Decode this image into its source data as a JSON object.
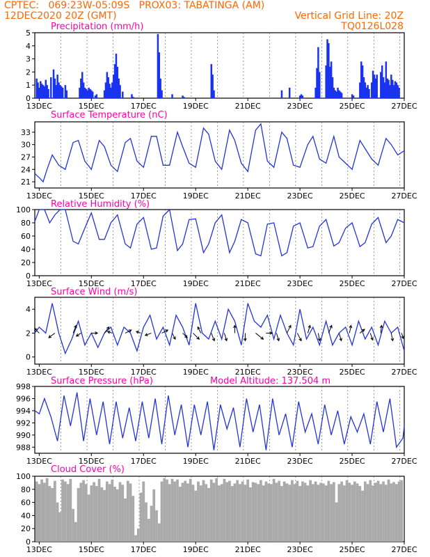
{
  "header": {
    "line1_left": "CPTEC:   069:23W-05:09S   PROX03: TABATINGA (AM)",
    "line2_left": "12DEC2020 20Z (GMT)",
    "line2_right": "Vertical Grid Line: 20Z",
    "line3_right": "TQ0126L028"
  },
  "colors": {
    "line": "#2233dd",
    "bar": "#1a33ee",
    "cloud": "#aaaaaa",
    "title": "#ff00aa",
    "header": "#ff6600",
    "arrow": "#000000"
  },
  "chart_data": [
    {
      "type": "bar",
      "title": "Precipitation (mm/h)",
      "x_ticks": [
        "13DEC",
        "15DEC",
        "17DEC",
        "19DEC",
        "21DEC",
        "23DEC",
        "25DEC",
        "27DEC"
      ],
      "y_ticks": [
        0,
        1,
        2,
        3,
        4,
        5
      ],
      "ylim": [
        0,
        5
      ],
      "x_range_days": [
        12.83,
        27.0
      ],
      "x": [
        12.9,
        12.95,
        13.0,
        13.05,
        13.1,
        13.15,
        13.2,
        13.25,
        13.3,
        13.35,
        13.45,
        13.55,
        13.6,
        13.65,
        13.7,
        13.75,
        13.8,
        13.85,
        13.9,
        14.0,
        14.05,
        14.55,
        14.6,
        14.65,
        14.7,
        14.75,
        14.8,
        14.85,
        14.9,
        14.95,
        15.0,
        15.05,
        15.15,
        15.2,
        15.5,
        15.55,
        15.6,
        15.65,
        15.7,
        15.75,
        15.8,
        15.85,
        15.9,
        15.95,
        16.0,
        16.05,
        16.1,
        16.2,
        16.55,
        16.6,
        17.55,
        17.6,
        17.65,
        17.7,
        18.1,
        18.5,
        18.55,
        19.6,
        19.65,
        19.7,
        22.3,
        22.6,
        23.0,
        23.05,
        23.1,
        23.6,
        23.65,
        23.7,
        23.75,
        24.0,
        24.05,
        24.1,
        24.15,
        24.2,
        24.25,
        24.3,
        24.35,
        24.4,
        24.45,
        24.5,
        24.55,
        24.6,
        25.0,
        25.05,
        25.3,
        25.35,
        25.4,
        25.45,
        25.5,
        25.55,
        25.6,
        25.65,
        25.75,
        25.8,
        25.85,
        25.9,
        25.95,
        26.1,
        26.15,
        26.2,
        26.25,
        26.3,
        26.35,
        26.4,
        26.45,
        26.5,
        26.55,
        26.6,
        26.65,
        26.7,
        26.75,
        26.8
      ],
      "values": [
        1.5,
        1.2,
        0.8,
        1.3,
        1.1,
        1.0,
        0.9,
        1.4,
        1.0,
        0.7,
        1.6,
        2.2,
        1.5,
        1.0,
        1.8,
        1.2,
        1.0,
        0.9,
        0.8,
        1.0,
        0.6,
        0.8,
        1.5,
        2.0,
        1.2,
        0.8,
        0.7,
        0.6,
        0.8,
        0.7,
        0.6,
        0.5,
        0.2,
        0.3,
        0.6,
        1.2,
        2.0,
        1.6,
        1.1,
        0.8,
        1.2,
        1.8,
        2.6,
        3.4,
        2.4,
        1.5,
        1.0,
        0.5,
        0.3,
        0.1,
        4.9,
        3.5,
        1.5,
        0.6,
        0.3,
        0.2,
        0.1,
        2.6,
        1.8,
        0.6,
        0.6,
        0.8,
        0.2,
        0.3,
        0.2,
        0.8,
        2.3,
        3.9,
        2.0,
        2.5,
        4.5,
        4.2,
        2.4,
        2.8,
        1.6,
        0.8,
        0.6,
        0.5,
        0.8,
        0.6,
        0.5,
        0.4,
        0.3,
        0.2,
        1.2,
        2.8,
        2.5,
        1.6,
        1.2,
        0.8,
        1.0,
        0.7,
        1.2,
        2.1,
        1.8,
        1.5,
        1.8,
        2.0,
        2.5,
        1.6,
        1.2,
        2.8,
        1.5,
        1.4,
        1.0,
        1.8,
        1.4,
        1.0,
        1.3,
        1.2,
        1.0,
        0.8
      ]
    },
    {
      "type": "line",
      "title": "Surface Temperature (nC)",
      "x_ticks": [
        "13DEC",
        "15DEC",
        "17DEC",
        "19DEC",
        "21DEC",
        "23DEC",
        "25DEC",
        "27DEC"
      ],
      "y_ticks": [
        21,
        24,
        27,
        30,
        33
      ],
      "ylim": [
        19.5,
        35.5
      ],
      "x": [
        12.83,
        13.0,
        13.15,
        13.3,
        13.5,
        13.75,
        14.0,
        14.3,
        14.5,
        14.75,
        15.0,
        15.3,
        15.5,
        15.75,
        16.0,
        16.3,
        16.5,
        16.75,
        17.0,
        17.3,
        17.5,
        17.75,
        18.0,
        18.3,
        18.5,
        18.75,
        19.0,
        19.3,
        19.5,
        19.75,
        20.0,
        20.3,
        20.5,
        20.75,
        21.0,
        21.3,
        21.5,
        21.75,
        22.0,
        22.3,
        22.5,
        22.75,
        23.0,
        23.3,
        23.5,
        23.75,
        24.0,
        24.3,
        24.5,
        24.75,
        25.0,
        25.3,
        25.5,
        25.75,
        26.0,
        26.3,
        26.5,
        26.75,
        27.0
      ],
      "values": [
        23.0,
        22.0,
        21.0,
        24.0,
        27.5,
        25.0,
        24.0,
        30.5,
        31.0,
        26.0,
        24.0,
        31.0,
        29.5,
        25.0,
        23.5,
        30.5,
        31.5,
        26.0,
        24.5,
        32.0,
        32.0,
        25.0,
        25.0,
        33.0,
        29.5,
        25.5,
        24.5,
        34.0,
        32.5,
        26.0,
        24.0,
        33.5,
        31.0,
        25.5,
        23.5,
        33.5,
        35.0,
        26.0,
        24.5,
        33.0,
        31.5,
        25.0,
        24.5,
        30.0,
        32.0,
        26.5,
        25.5,
        32.0,
        27.0,
        25.5,
        24.0,
        31.0,
        29.0,
        26.5,
        25.0,
        31.5,
        30.0,
        27.5,
        28.5
      ]
    },
    {
      "type": "line",
      "title": "Relative Humidity (%)",
      "x_ticks": [
        "13DEC",
        "15DEC",
        "17DEC",
        "19DEC",
        "21DEC",
        "23DEC",
        "25DEC",
        "27DEC"
      ],
      "y_ticks": [
        0,
        20,
        40,
        60,
        80,
        100
      ],
      "ylim": [
        0,
        100
      ],
      "x": [
        12.83,
        13.0,
        13.2,
        13.4,
        13.6,
        13.8,
        14.0,
        14.3,
        14.5,
        14.75,
        15.0,
        15.3,
        15.5,
        15.75,
        16.0,
        16.3,
        16.5,
        16.75,
        17.0,
        17.3,
        17.5,
        17.75,
        18.0,
        18.3,
        18.5,
        18.75,
        19.0,
        19.3,
        19.5,
        19.75,
        20.0,
        20.3,
        20.5,
        20.75,
        21.0,
        21.3,
        21.5,
        21.75,
        22.0,
        22.3,
        22.5,
        22.75,
        23.0,
        23.3,
        23.5,
        23.75,
        24.0,
        24.3,
        24.5,
        24.75,
        25.0,
        25.3,
        25.5,
        25.75,
        26.0,
        26.3,
        26.5,
        26.75,
        27.0
      ],
      "values": [
        82,
        100,
        100,
        80,
        92,
        100,
        100,
        52,
        48,
        72,
        95,
        55,
        55,
        80,
        92,
        48,
        42,
        78,
        88,
        40,
        42,
        90,
        100,
        38,
        48,
        85,
        86,
        35,
        48,
        80,
        92,
        35,
        52,
        85,
        80,
        33,
        30,
        78,
        80,
        30,
        35,
        75,
        80,
        42,
        44,
        75,
        85,
        45,
        50,
        72,
        80,
        44,
        50,
        78,
        88,
        50,
        60,
        85,
        80
      ]
    },
    {
      "type": "line",
      "title": "Surface Wind (m/s)",
      "x_ticks": [
        "13DEC",
        "15DEC",
        "17DEC",
        "19DEC",
        "21DEC",
        "23DEC",
        "25DEC",
        "27DEC"
      ],
      "y_ticks": [
        0,
        2,
        4
      ],
      "ylim": [
        -0.6,
        5.0
      ],
      "x": [
        12.83,
        13.0,
        13.25,
        13.5,
        13.75,
        14.0,
        14.25,
        14.5,
        14.75,
        15.0,
        15.25,
        15.5,
        15.75,
        16.0,
        16.25,
        16.5,
        16.75,
        17.0,
        17.25,
        17.5,
        17.75,
        18.0,
        18.25,
        18.5,
        18.75,
        19.0,
        19.25,
        19.5,
        19.75,
        20.0,
        20.25,
        20.5,
        20.75,
        21.0,
        21.25,
        21.5,
        21.75,
        22.0,
        22.25,
        22.5,
        22.75,
        23.0,
        23.25,
        23.5,
        23.75,
        24.0,
        24.25,
        24.5,
        24.75,
        25.0,
        25.25,
        25.5,
        25.75,
        26.0,
        26.25,
        26.5,
        26.75,
        27.0
      ],
      "values": [
        2.0,
        2.5,
        2.0,
        4.5,
        2.0,
        0.3,
        1.5,
        3.0,
        1.0,
        2.0,
        0.8,
        2.0,
        2.5,
        1.0,
        2.5,
        2.0,
        0.5,
        2.5,
        3.5,
        1.5,
        2.5,
        1.0,
        3.5,
        2.5,
        1.0,
        4.5,
        2.0,
        1.5,
        3.0,
        1.5,
        4.0,
        3.0,
        1.0,
        4.5,
        3.0,
        2.5,
        3.5,
        1.5,
        3.5,
        2.0,
        1.0,
        4.0,
        1.5,
        2.5,
        1.0,
        3.0,
        1.0,
        2.0,
        2.5,
        1.0,
        3.0,
        1.5,
        2.5,
        1.0,
        3.0,
        2.0,
        2.5,
        0.5
      ],
      "arrows": [
        {
          "x": 13.0,
          "u": -0.6,
          "v": 0.6
        },
        {
          "x": 13.6,
          "u": -0.8,
          "v": -0.6
        },
        {
          "x": 14.3,
          "u": 0.4,
          "v": 1.0
        },
        {
          "x": 14.6,
          "u": -0.6,
          "v": -0.4
        },
        {
          "x": 15.0,
          "u": 0.8,
          "v": 0.0
        },
        {
          "x": 15.5,
          "u": 0.6,
          "v": 0.8
        },
        {
          "x": 15.8,
          "u": -0.6,
          "v": 0.2
        },
        {
          "x": 16.3,
          "u": 0.8,
          "v": 0.4
        },
        {
          "x": 16.9,
          "u": -0.6,
          "v": 0.2
        },
        {
          "x": 17.3,
          "u": -0.8,
          "v": -0.3
        },
        {
          "x": 17.7,
          "u": 0.8,
          "v": 0.4
        },
        {
          "x": 18.1,
          "u": 0.4,
          "v": -0.8
        },
        {
          "x": 18.5,
          "u": 0.6,
          "v": -0.6
        },
        {
          "x": 18.9,
          "u": 0.8,
          "v": -0.8
        },
        {
          "x": 19.2,
          "u": -0.4,
          "v": 0.8
        },
        {
          "x": 19.6,
          "u": 0.4,
          "v": -1.0
        },
        {
          "x": 20.1,
          "u": 0.3,
          "v": -1.0
        },
        {
          "x": 20.5,
          "u": 0.0,
          "v": 1.0
        },
        {
          "x": 20.9,
          "u": 0.0,
          "v": -1.0
        },
        {
          "x": 21.3,
          "u": 1.0,
          "v": -0.8
        },
        {
          "x": 21.7,
          "u": 0.8,
          "v": 0.0
        },
        {
          "x": 22.1,
          "u": 0.3,
          "v": -1.0
        },
        {
          "x": 22.5,
          "u": 0.5,
          "v": 1.0
        },
        {
          "x": 22.9,
          "u": 0.5,
          "v": -1.0
        },
        {
          "x": 23.3,
          "u": 0.3,
          "v": 1.0
        },
        {
          "x": 23.7,
          "u": 0.2,
          "v": -1.0
        },
        {
          "x": 24.1,
          "u": 0.4,
          "v": 1.0
        },
        {
          "x": 24.5,
          "u": 0.3,
          "v": -1.0
        },
        {
          "x": 24.9,
          "u": 0.2,
          "v": 1.0
        },
        {
          "x": 25.3,
          "u": 0.6,
          "v": 0.5
        },
        {
          "x": 25.7,
          "u": 0.3,
          "v": -0.9
        },
        {
          "x": 26.1,
          "u": 0.1,
          "v": 1.0
        },
        {
          "x": 26.5,
          "u": 0.2,
          "v": -1.0
        },
        {
          "x": 26.9,
          "u": 0.2,
          "v": -0.7
        }
      ]
    },
    {
      "type": "line",
      "title": "Surface Pressure (hPa)",
      "annotation": "Model Altitude: 137.504  m",
      "x_ticks": [
        "13DEC",
        "15DEC",
        "17DEC",
        "19DEC",
        "21DEC",
        "23DEC",
        "25DEC",
        "27DEC"
      ],
      "y_ticks": [
        988,
        990,
        992,
        994,
        996,
        998
      ],
      "ylim": [
        987.0,
        998.0
      ],
      "x": [
        12.83,
        13.0,
        13.2,
        13.45,
        13.7,
        13.95,
        14.2,
        14.45,
        14.7,
        14.95,
        15.2,
        15.45,
        15.7,
        15.95,
        16.2,
        16.45,
        16.7,
        16.95,
        17.2,
        17.45,
        17.7,
        17.95,
        18.2,
        18.45,
        18.7,
        18.95,
        19.2,
        19.45,
        19.7,
        19.95,
        20.2,
        20.45,
        20.7,
        20.95,
        21.2,
        21.45,
        21.7,
        21.95,
        22.2,
        22.45,
        22.7,
        22.95,
        23.2,
        23.45,
        23.7,
        23.95,
        24.2,
        24.45,
        24.7,
        24.95,
        25.2,
        25.45,
        25.7,
        25.95,
        26.2,
        26.45,
        26.7,
        26.95,
        27.0
      ],
      "values": [
        994.0,
        993.5,
        996.0,
        993.0,
        989.0,
        996.5,
        991.5,
        997.0,
        989.0,
        996.0,
        990.0,
        995.5,
        988.5,
        995.5,
        989.5,
        994.5,
        989.0,
        995.5,
        989.5,
        996.0,
        988.5,
        996.5,
        990.0,
        995.0,
        988.0,
        995.0,
        990.0,
        995.5,
        987.5,
        995.0,
        991.0,
        994.5,
        988.0,
        996.0,
        990.5,
        995.0,
        987.5,
        996.0,
        990.0,
        993.5,
        988.0,
        995.5,
        990.5,
        993.5,
        988.5,
        995.0,
        990.0,
        994.0,
        988.5,
        993.0,
        990.5,
        993.5,
        988.5,
        995.5,
        990.5,
        996.0,
        988.0,
        989.5,
        991.5
      ]
    },
    {
      "type": "bar",
      "title": "Cloud Cover (%)",
      "x_ticks": [
        "13DEC",
        "15DEC",
        "17DEC",
        "19DEC",
        "21DEC",
        "23DEC",
        "25DEC",
        "27DEC"
      ],
      "y_ticks": [
        0,
        20,
        40,
        60,
        80,
        100
      ],
      "ylim": [
        0,
        100
      ],
      "x_range_days": [
        12.83,
        27.0
      ],
      "x": [
        12.9,
        13.0,
        13.1,
        13.2,
        13.3,
        13.4,
        13.5,
        13.6,
        13.7,
        13.8,
        13.9,
        14.0,
        14.1,
        14.2,
        14.3,
        14.4,
        14.5,
        14.6,
        14.7,
        14.8,
        14.9,
        15.0,
        15.1,
        15.2,
        15.3,
        15.4,
        15.5,
        15.6,
        15.7,
        15.8,
        15.9,
        16.0,
        16.1,
        16.2,
        16.3,
        16.4,
        16.5,
        16.6,
        16.7,
        16.8,
        16.9,
        17.0,
        17.1,
        17.2,
        17.3,
        17.4,
        17.5,
        17.6,
        17.7,
        17.8,
        17.9,
        18.0,
        18.1,
        18.2,
        18.3,
        18.4,
        18.5,
        18.6,
        18.7,
        18.8,
        18.9,
        19.0,
        19.1,
        19.2,
        19.3,
        19.4,
        19.5,
        19.6,
        19.7,
        19.8,
        19.9,
        20.0,
        20.1,
        20.2,
        20.3,
        20.4,
        20.5,
        20.6,
        20.7,
        20.8,
        20.9,
        21.0,
        21.1,
        21.2,
        21.3,
        21.4,
        21.5,
        21.6,
        21.7,
        21.8,
        21.9,
        22.0,
        22.1,
        22.2,
        22.3,
        22.4,
        22.5,
        22.6,
        22.7,
        22.8,
        22.9,
        23.0,
        23.1,
        23.2,
        23.3,
        23.4,
        23.5,
        23.6,
        23.7,
        23.8,
        23.9,
        24.0,
        24.1,
        24.2,
        24.3,
        24.4,
        24.5,
        24.6,
        24.7,
        24.8,
        24.9,
        25.0,
        25.1,
        25.2,
        25.3,
        25.4,
        25.5,
        25.6,
        25.7,
        25.8,
        25.9,
        26.0,
        26.1,
        26.2,
        26.3,
        26.4,
        26.5,
        26.6,
        26.7,
        26.8,
        26.9
      ],
      "values": [
        92,
        88,
        95,
        90,
        97,
        85,
        82,
        93,
        60,
        45,
        95,
        92,
        88,
        96,
        50,
        30,
        82,
        90,
        94,
        88,
        72,
        86,
        91,
        85,
        96,
        83,
        79,
        92,
        88,
        95,
        84,
        80,
        91,
        87,
        66,
        93,
        89,
        70,
        10,
        20,
        75,
        92,
        60,
        35,
        55,
        80,
        48,
        28,
        92,
        97,
        95,
        88,
        96,
        92,
        95,
        84,
        90,
        93,
        89,
        96,
        87,
        78,
        92,
        86,
        94,
        88,
        82,
        95,
        90,
        97,
        86,
        88,
        96,
        91,
        93,
        85,
        89,
        94,
        88,
        92,
        87,
        95,
        83,
        91,
        90,
        88,
        94,
        86,
        92,
        89,
        88,
        96,
        90,
        93,
        85,
        92,
        89,
        87,
        94,
        88,
        93,
        85,
        92,
        90,
        86,
        94,
        88,
        92,
        87,
        90,
        89,
        86,
        93,
        88,
        91,
        60,
        88,
        92,
        86,
        94,
        90,
        87,
        92,
        89,
        85,
        78,
        92,
        88,
        94,
        86,
        90,
        93,
        88,
        92,
        87,
        95,
        89,
        91,
        88,
        92,
        94
      ]
    }
  ]
}
